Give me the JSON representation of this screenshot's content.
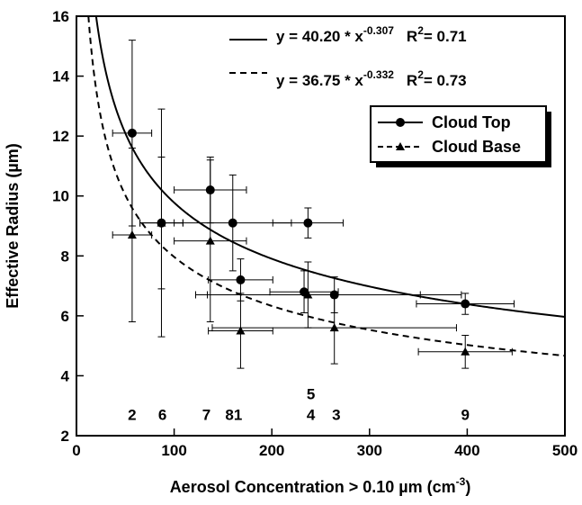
{
  "chart_data": {
    "type": "scatter",
    "x_label": {
      "text": "Aerosol Concentration > 0.10 µm (cm",
      "sup": "-3",
      "end": ")"
    },
    "y_label": "Effective Radius (µm)",
    "xlim": [
      0,
      500
    ],
    "ylim": [
      2,
      16
    ],
    "xticks": [
      0,
      100,
      200,
      300,
      400,
      500
    ],
    "yticks": [
      2,
      4,
      6,
      8,
      10,
      12,
      14,
      16
    ],
    "series": [
      {
        "name": "Cloud Top",
        "marker": "circle",
        "color": "#000000",
        "x": [
          57,
          87,
          137,
          160,
          168,
          237,
          233,
          264,
          398
        ],
        "values": [
          12.1,
          9.1,
          10.2,
          9.1,
          7.2,
          9.1,
          6.8,
          6.7,
          6.4
        ],
        "errors": [
          3.1,
          3.8,
          1.1,
          1.6,
          0.7,
          0.5,
          0.7,
          0.6,
          0.35
        ],
        "x_errors": [
          20,
          22,
          37,
          60,
          33,
          36,
          35,
          130,
          50
        ]
      },
      {
        "name": "Cloud Base",
        "marker": "triangle",
        "color": "#000000",
        "x": [
          57,
          87,
          137,
          168,
          237,
          264,
          398
        ],
        "values": [
          8.7,
          9.1,
          8.5,
          5.5,
          6.7,
          5.6,
          4.8
        ],
        "errors": [
          2.9,
          2.2,
          2.7,
          1.25,
          1.1,
          1.2,
          0.55
        ],
        "x_errors": [
          20,
          22,
          37,
          33,
          115,
          125,
          48
        ]
      }
    ],
    "fits": [
      {
        "a": 40.2,
        "b": -0.307,
        "dash": false,
        "equation": "y = 40.20 * x",
        "exponent": "-0.307",
        "r2_symbol": "R",
        "r2_power": "2",
        "r2_text": "= 0.71"
      },
      {
        "a": 36.75,
        "b": -0.332,
        "dash": true,
        "equation": "y = 36.75 * x",
        "exponent": "-0.332",
        "r2_symbol": "R",
        "r2_power": "2",
        "r2_text": "= 0.73"
      }
    ],
    "point_labels": [
      {
        "text": "2",
        "x": 57,
        "y": 2.7
      },
      {
        "text": "6",
        "x": 88,
        "y": 2.7
      },
      {
        "text": "7",
        "x": 133,
        "y": 2.7
      },
      {
        "text": "81",
        "x": 161,
        "y": 2.7
      },
      {
        "text": "5",
        "x": 240,
        "y": 3.4
      },
      {
        "text": "4",
        "x": 240,
        "y": 2.7
      },
      {
        "text": "3",
        "x": 266,
        "y": 2.7
      },
      {
        "text": "9",
        "x": 398,
        "y": 2.7
      }
    ]
  }
}
